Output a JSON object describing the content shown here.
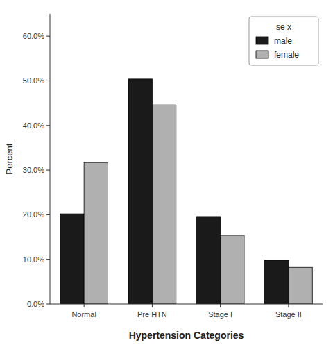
{
  "chart_data": {
    "type": "bar",
    "categories": [
      "Normal",
      "Pre HTN",
      "Stage I",
      "Stage II"
    ],
    "series": [
      {
        "name": "male",
        "color": "#1a1a1a",
        "values": [
          0.202,
          0.504,
          0.196,
          0.098
        ]
      },
      {
        "name": "female",
        "color": "#b0b0b0",
        "values": [
          0.317,
          0.446,
          0.154,
          0.082
        ]
      }
    ],
    "xlabel": "Hypertension Categories",
    "ylabel": "Percent",
    "ylim": [
      0.0,
      0.65
    ],
    "yticks": [
      {
        "value": 0.0,
        "label": "0.0%"
      },
      {
        "value": 0.1,
        "label": "10.0%"
      },
      {
        "value": 0.2,
        "label": "20.0%"
      },
      {
        "value": 0.3,
        "label": "30.0%"
      },
      {
        "value": 0.4,
        "label": "40.0%"
      },
      {
        "value": 0.5,
        "label": "50.0%"
      },
      {
        "value": 0.6,
        "label": "60.0%"
      }
    ],
    "legend_title": "se x",
    "legend": "upper right",
    "grid": false
  }
}
